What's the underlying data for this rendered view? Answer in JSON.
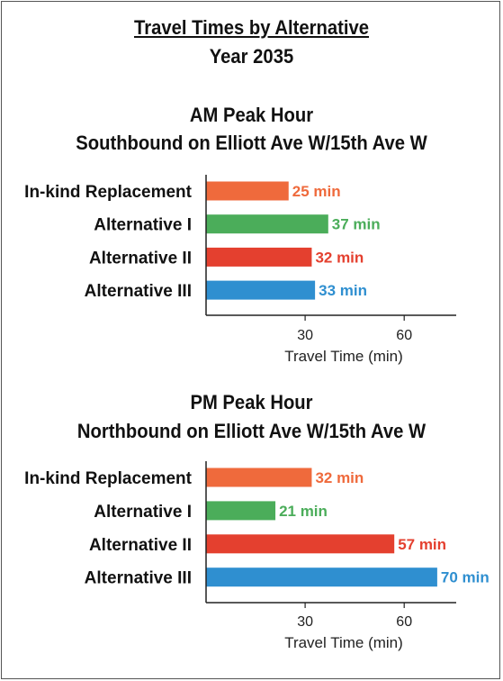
{
  "title": "Travel Times by Alternative",
  "subtitle": "Year 2035",
  "colors": {
    "in_kind": "#ef6a3c",
    "alt1": "#4bad5a",
    "alt2": "#e4402f",
    "alt3": "#2f8fd0",
    "axis": "#222222",
    "text": "#111111"
  },
  "chart_data": [
    {
      "type": "bar",
      "orientation": "horizontal",
      "title": "AM Peak Hour",
      "subtitle": "Southbound on Elliott Ave W/15th Ave W",
      "categories": [
        "In-kind Replacement",
        "Alternative I",
        "Alternative II",
        "Alternative III"
      ],
      "values": [
        25,
        37,
        32,
        33
      ],
      "value_labels": [
        "25 min",
        "37 min",
        "32 min",
        "33 min"
      ],
      "xlabel": "Travel Time (min)",
      "xticks": [
        30,
        60
      ],
      "xlim": [
        0,
        75
      ],
      "grid": false
    },
    {
      "type": "bar",
      "orientation": "horizontal",
      "title": "PM Peak Hour",
      "subtitle": "Northbound on Elliott Ave W/15th Ave W",
      "categories": [
        "In-kind Replacement",
        "Alternative I",
        "Alternative II",
        "Alternative III"
      ],
      "values": [
        32,
        21,
        57,
        70
      ],
      "value_labels": [
        "32 min",
        "21 min",
        "57 min",
        "70 min"
      ],
      "xlabel": "Travel Time (min)",
      "xticks": [
        30,
        60
      ],
      "xlim": [
        0,
        75
      ],
      "grid": false
    }
  ]
}
